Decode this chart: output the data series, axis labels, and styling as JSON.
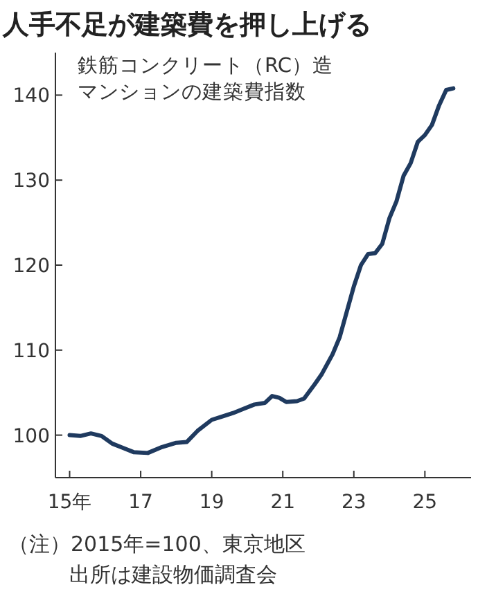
{
  "chart_data": {
    "type": "line",
    "title": "人手不足が建築費を押し上げる",
    "subtitle": "鉄筋コンクリート（RC）造マンションの建築費指数",
    "x": [
      15.0,
      15.3,
      15.6,
      15.9,
      16.2,
      16.5,
      16.8,
      17.2,
      17.6,
      18.0,
      18.3,
      18.6,
      19.0,
      19.3,
      19.6,
      19.9,
      20.2,
      20.5,
      20.7,
      20.9,
      21.1,
      21.4,
      21.6,
      21.9,
      22.1,
      22.4,
      22.6,
      22.8,
      23.0,
      23.2,
      23.4,
      23.6,
      23.8,
      24.0,
      24.2,
      24.4,
      24.6,
      24.8,
      25.0,
      25.2,
      25.4,
      25.6,
      25.8
    ],
    "series": [
      {
        "color": "#1f3a5f",
        "values": [
          100,
          99.9,
          100.2,
          99.9,
          99,
          98.5,
          98,
          97.9,
          98.6,
          99.1,
          99.2,
          100.5,
          101.8,
          102.2,
          102.6,
          103.1,
          103.6,
          103.8,
          104.6,
          104.4,
          103.9,
          104,
          104.3,
          106,
          107.2,
          109.5,
          111.5,
          114.5,
          117.5,
          120,
          121.3,
          121.4,
          122.5,
          125.5,
          127.5,
          130.5,
          132,
          134.5,
          135.3,
          136.5,
          138.8,
          140.6,
          140.8
        ]
      }
    ],
    "xlim": [
      14.6,
      26.3
    ],
    "ylim": [
      95,
      145
    ],
    "xticks": [
      {
        "value": 15,
        "label": "15年"
      },
      17,
      19,
      21,
      23,
      25
    ],
    "yticks": [
      100,
      110,
      120,
      130,
      140
    ],
    "grid": false,
    "marker": "none",
    "line_style": "solid",
    "annotations": [
      "（注）2015年=100、東京地区",
      "出所は建設物価調査会"
    ]
  }
}
